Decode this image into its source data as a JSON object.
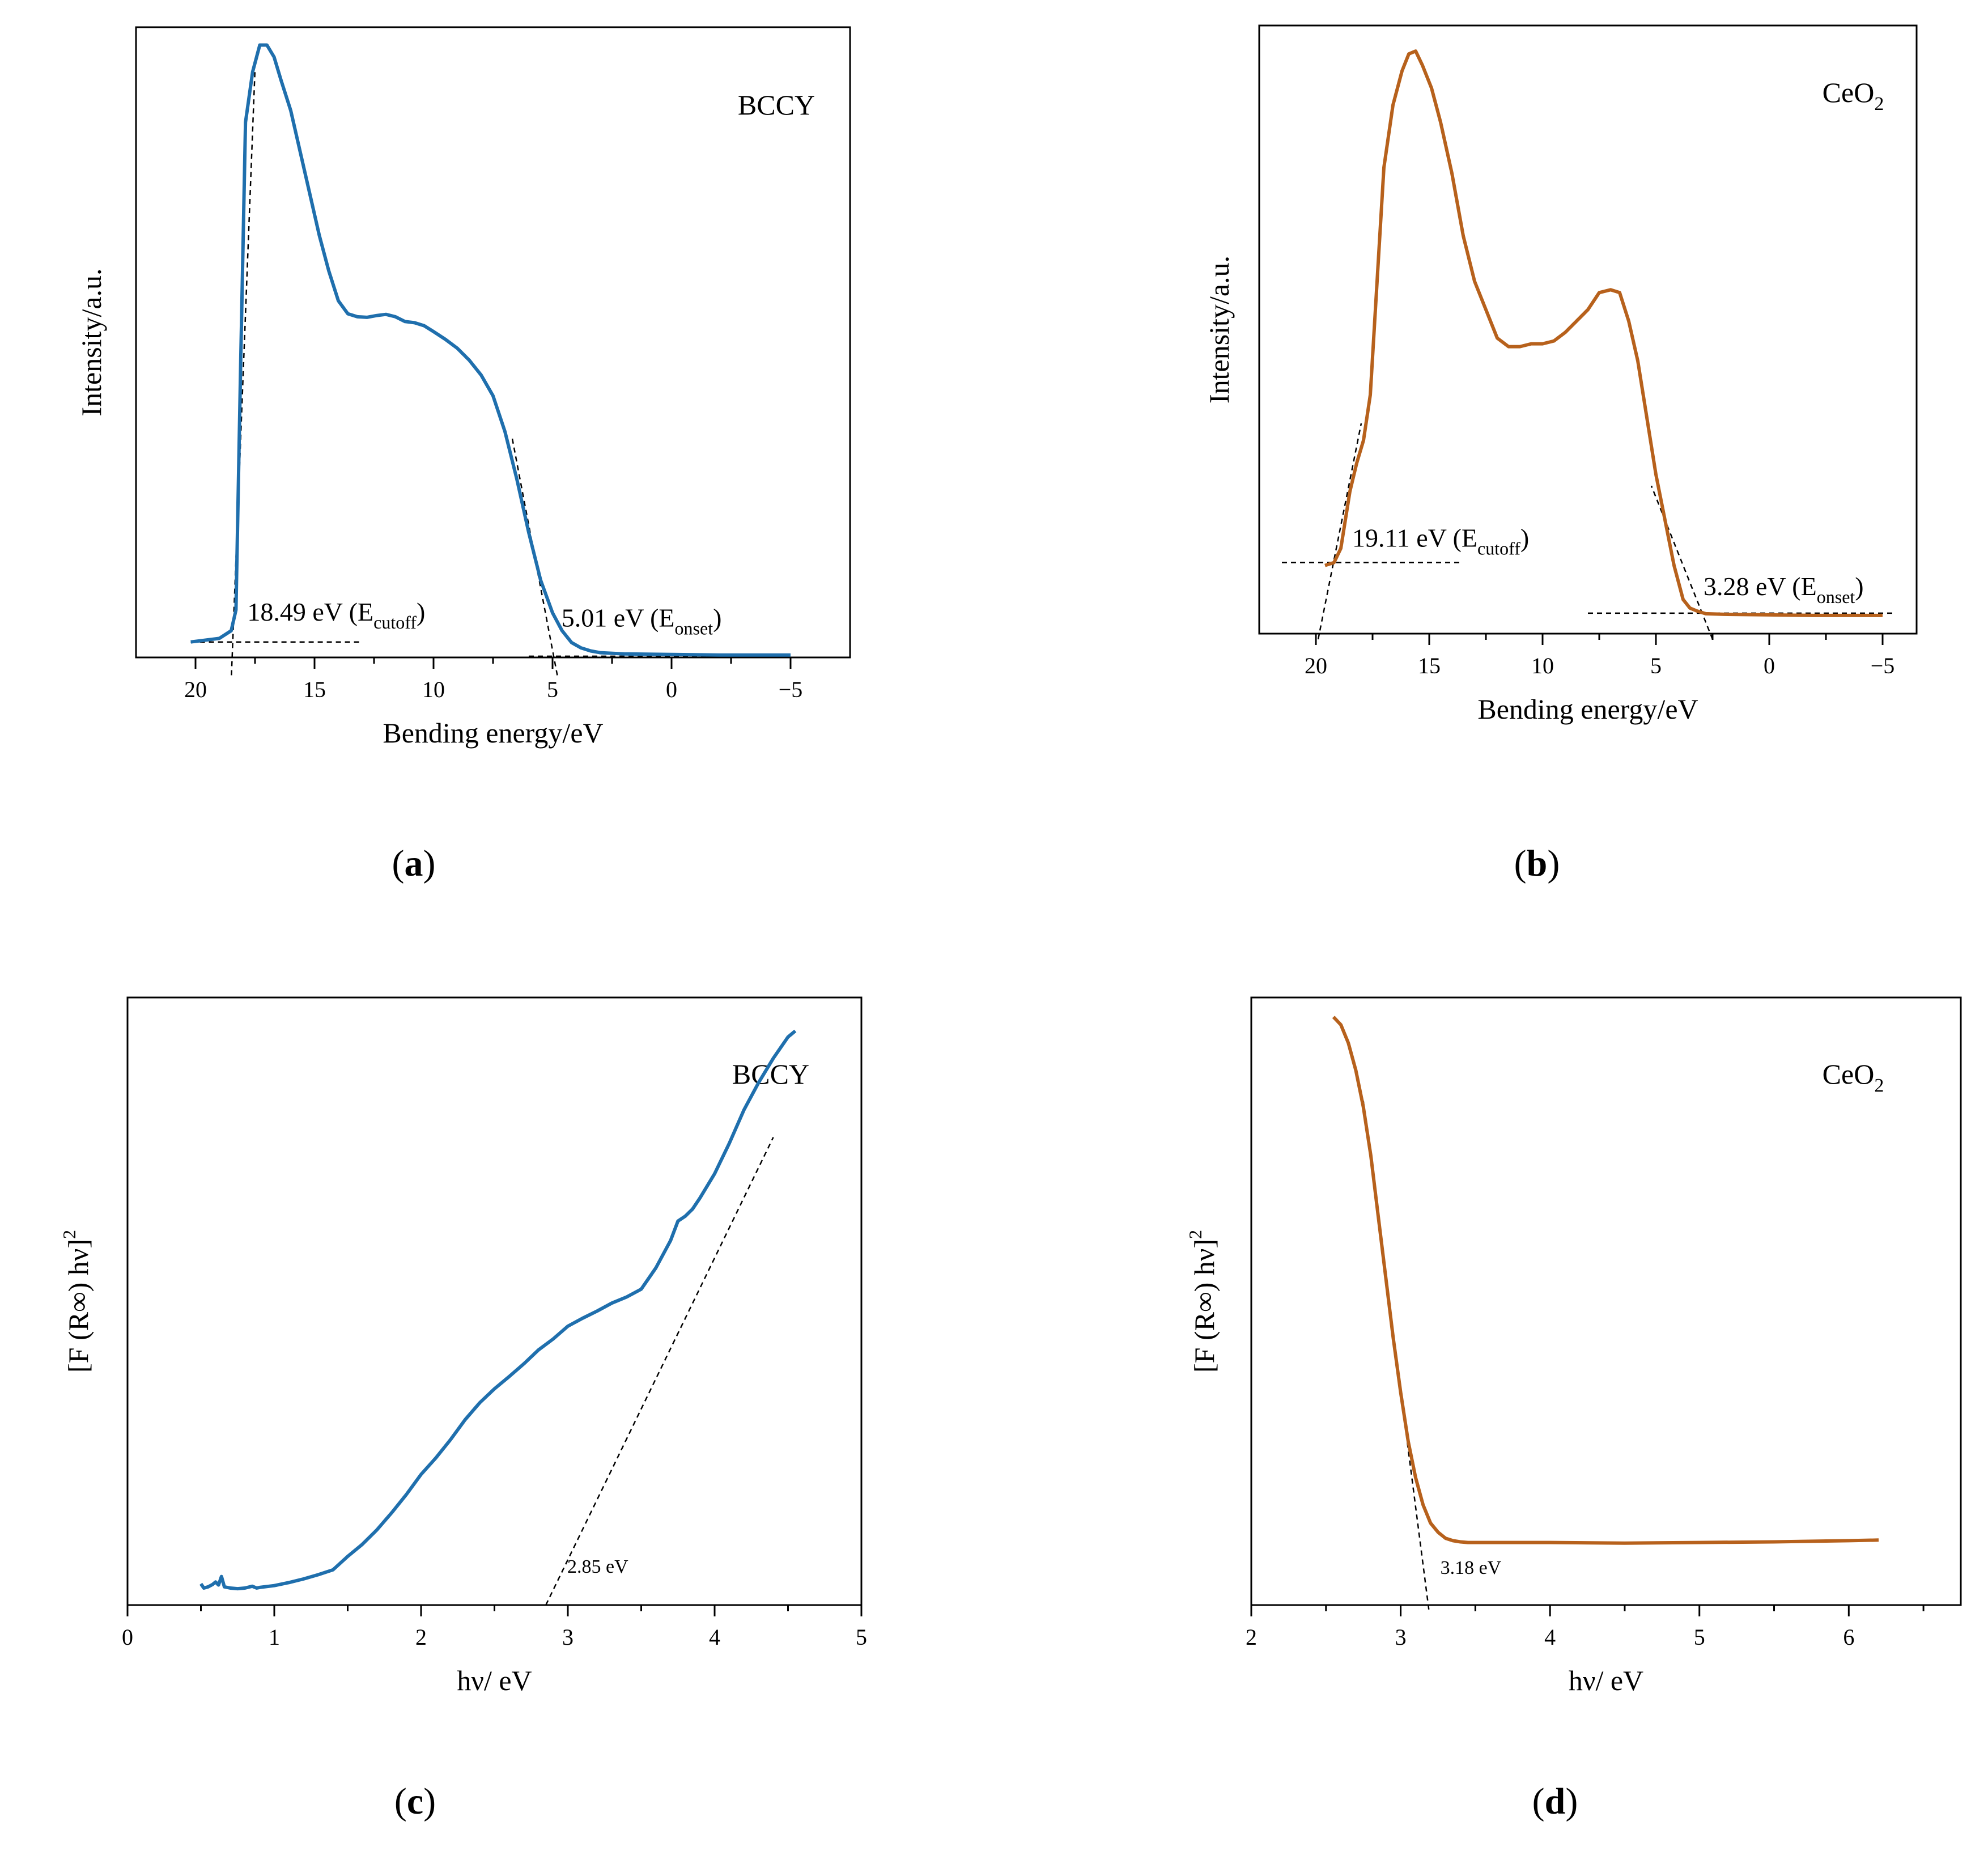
{
  "colors": {
    "blue": "#1f6fad",
    "orange": "#b7611c",
    "axis": "#000000"
  },
  "chart_data": [
    {
      "panel": "a",
      "type": "line",
      "sample": "BCCY",
      "xlabel": "Bending energy/eV",
      "ylabel": "Intensity/a.u.",
      "xlim": [
        22.5,
        -7.5
      ],
      "ylim": [
        0,
        1.06
      ],
      "x_reversed": true,
      "x_ticks": [
        20,
        15,
        10,
        5,
        0,
        -5
      ],
      "x_tick_labels": [
        "20",
        "15",
        "10",
        "5",
        "0",
        "−5"
      ],
      "series": [
        {
          "name": "BCCY",
          "color": "#1f6fad",
          "x": [
            20.2,
            19,
            18.5,
            18.3,
            18.1,
            17.9,
            17.6,
            17.3,
            17.0,
            16.7,
            16.4,
            16.0,
            15.6,
            15.2,
            14.8,
            14.4,
            14.0,
            13.6,
            13.2,
            12.8,
            12.4,
            12.0,
            11.6,
            11.2,
            10.8,
            10.4,
            10.0,
            9.5,
            9.0,
            8.5,
            8.0,
            7.5,
            7.0,
            6.5,
            6.0,
            5.5,
            5.0,
            4.6,
            4.2,
            3.8,
            3.4,
            3.0,
            2.0,
            0,
            -2,
            -4,
            -5
          ],
          "y": [
            0.026,
            0.032,
            0.045,
            0.08,
            0.5,
            0.9,
            0.985,
            1.03,
            1.03,
            1.01,
            0.97,
            0.92,
            0.85,
            0.78,
            0.71,
            0.65,
            0.6,
            0.578,
            0.573,
            0.572,
            0.575,
            0.577,
            0.573,
            0.565,
            0.563,
            0.558,
            0.548,
            0.535,
            0.52,
            0.5,
            0.475,
            0.44,
            0.38,
            0.3,
            0.21,
            0.13,
            0.075,
            0.045,
            0.025,
            0.016,
            0.011,
            0.008,
            0.006,
            0.005,
            0.004,
            0.004,
            0.004
          ]
        }
      ],
      "fit_lines": [
        {
          "points": [
            [
              20.2,
              0.026
            ],
            [
              13.0,
              0.026
            ]
          ]
        },
        {
          "points": [
            [
              18.49,
              -0.03
            ],
            [
              17.5,
              0.99
            ]
          ]
        },
        {
          "points": [
            [
              6.0,
              0.002
            ],
            [
              -4.9,
              0.002
            ]
          ]
        },
        {
          "points": [
            [
              4.8,
              -0.03
            ],
            [
              6.7,
              0.37
            ]
          ]
        }
      ],
      "annotations": [
        {
          "id": "cutoff",
          "value": "18.49 eV",
          "sub": "cutoff",
          "x": 18.3,
          "y": 0.045
        },
        {
          "id": "onset",
          "value": "5.01 eV",
          "sub": "onset",
          "x": 5.1,
          "y": 0.035
        }
      ]
    },
    {
      "panel": "b",
      "type": "line",
      "sample": "CeO2",
      "xlabel": "Bending energy/eV",
      "ylabel": "Intensity/a.u.",
      "xlim": [
        22.5,
        -6.5
      ],
      "ylim": [
        0,
        1.07
      ],
      "x_reversed": true,
      "x_ticks": [
        20,
        15,
        10,
        5,
        0,
        -5
      ],
      "x_tick_labels": [
        "20",
        "15",
        "10",
        "5",
        "0",
        "−5"
      ],
      "series": [
        {
          "name": "CeO2",
          "color": "#b7611c",
          "x": [
            19.6,
            19.2,
            18.9,
            18.7,
            18.5,
            18.2,
            17.9,
            17.6,
            17.3,
            17.0,
            16.6,
            16.2,
            15.9,
            15.6,
            15.3,
            14.9,
            14.5,
            14.0,
            13.5,
            13.0,
            12.5,
            12.0,
            11.5,
            11.0,
            10.5,
            10.0,
            9.5,
            9.0,
            8.5,
            8.0,
            7.5,
            7.0,
            6.6,
            6.2,
            5.8,
            5.4,
            5.0,
            4.6,
            4.2,
            3.8,
            3.5,
            3.2,
            2.8,
            2.0,
            0,
            -2,
            -4,
            -5
          ],
          "y": [
            0.12,
            0.125,
            0.15,
            0.2,
            0.25,
            0.3,
            0.34,
            0.42,
            0.62,
            0.82,
            0.93,
            0.99,
            1.02,
            1.025,
            1.0,
            0.96,
            0.9,
            0.81,
            0.7,
            0.62,
            0.57,
            0.52,
            0.505,
            0.505,
            0.51,
            0.51,
            0.515,
            0.53,
            0.55,
            0.57,
            0.6,
            0.605,
            0.6,
            0.55,
            0.48,
            0.38,
            0.28,
            0.2,
            0.12,
            0.06,
            0.045,
            0.04,
            0.035,
            0.034,
            0.033,
            0.032,
            0.032,
            0.032
          ]
        }
      ],
      "fit_lines": [
        {
          "points": [
            [
              21.5,
              0.125
            ],
            [
              13.5,
              0.125
            ]
          ]
        },
        {
          "points": [
            [
              19.9,
              -0.01
            ],
            [
              18.0,
              0.37
            ]
          ]
        },
        {
          "points": [
            [
              8.0,
              0.036
            ],
            [
              -5.5,
              0.036
            ]
          ]
        },
        {
          "points": [
            [
              2.5,
              -0.01
            ],
            [
              5.2,
              0.26
            ]
          ]
        }
      ],
      "annotations": [
        {
          "id": "cutoff",
          "value": "19.11 eV",
          "sub": "cutoff",
          "x": 18.9,
          "y": 0.135
        },
        {
          "id": "onset",
          "value": "3.28 eV",
          "sub": "onset",
          "x": 3.4,
          "y": 0.05
        }
      ]
    },
    {
      "panel": "c",
      "type": "line",
      "sample": "BCCY",
      "xlabel": "hν/ eV",
      "ylabel": "[F (R∞) hν]",
      "ylabel_sup": "2",
      "xlim": [
        0,
        5
      ],
      "ylim": [
        0,
        1.0
      ],
      "x_ticks": [
        0,
        1,
        2,
        3,
        4,
        5
      ],
      "x_tick_labels": [
        "0",
        "1",
        "2",
        "3",
        "4",
        "5"
      ],
      "series": [
        {
          "name": "BCCY",
          "color": "#1f6fad",
          "x": [
            0.5,
            0.52,
            0.55,
            0.58,
            0.6,
            0.62,
            0.64,
            0.66,
            0.7,
            0.75,
            0.8,
            0.85,
            0.88,
            0.9,
            1.0,
            1.1,
            1.2,
            1.3,
            1.4,
            1.5,
            1.6,
            1.7,
            1.8,
            1.9,
            2.0,
            2.1,
            2.2,
            2.3,
            2.4,
            2.5,
            2.6,
            2.7,
            2.8,
            2.9,
            3.0,
            3.1,
            3.2,
            3.3,
            3.4,
            3.5,
            3.6,
            3.7,
            3.75,
            3.8,
            3.85,
            3.9,
            4.0,
            4.1,
            4.2,
            4.3,
            4.4,
            4.5,
            4.55
          ],
          "y": [
            0.035,
            0.028,
            0.03,
            0.034,
            0.038,
            0.033,
            0.047,
            0.03,
            0.028,
            0.027,
            0.028,
            0.031,
            0.028,
            0.029,
            0.032,
            0.037,
            0.043,
            0.05,
            0.058,
            0.08,
            0.1,
            0.124,
            0.152,
            0.182,
            0.215,
            0.242,
            0.272,
            0.305,
            0.333,
            0.356,
            0.376,
            0.397,
            0.42,
            0.438,
            0.459,
            0.472,
            0.484,
            0.497,
            0.507,
            0.52,
            0.555,
            0.6,
            0.632,
            0.64,
            0.652,
            0.67,
            0.71,
            0.76,
            0.815,
            0.86,
            0.9,
            0.935,
            0.945
          ]
        }
      ],
      "fit_lines": [
        {
          "points": [
            [
              2.85,
              0.0
            ],
            [
              4.4,
              0.77
            ]
          ]
        }
      ],
      "annotations": [
        {
          "id": "gap",
          "value": "2.85 eV",
          "x": 2.95,
          "y": 0.042
        }
      ]
    },
    {
      "panel": "d",
      "type": "line",
      "sample": "CeO2",
      "xlabel": "hν/ eV",
      "ylabel": "[F (R∞) hν]",
      "ylabel_sup": "2",
      "xlim": [
        2,
        6.75
      ],
      "ylim": [
        0,
        1.0
      ],
      "x_ticks": [
        2,
        3,
        4,
        5,
        6
      ],
      "x_tick_labels": [
        "2",
        "3",
        "4",
        "5",
        "6"
      ],
      "series": [
        {
          "name": "CeO2",
          "color": "#b7611c",
          "x": [
            2.55,
            2.6,
            2.65,
            2.7,
            2.75,
            2.8,
            2.85,
            2.9,
            2.95,
            3.0,
            3.05,
            3.1,
            3.15,
            3.2,
            3.25,
            3.3,
            3.35,
            3.4,
            3.45,
            3.5,
            3.6,
            3.8,
            4.0,
            4.5,
            5.0,
            5.5,
            6.0,
            6.2
          ],
          "y": [
            0.968,
            0.955,
            0.925,
            0.88,
            0.82,
            0.74,
            0.64,
            0.54,
            0.44,
            0.35,
            0.27,
            0.21,
            0.165,
            0.135,
            0.12,
            0.11,
            0.106,
            0.104,
            0.103,
            0.103,
            0.103,
            0.103,
            0.103,
            0.102,
            0.103,
            0.104,
            0.106,
            0.107
          ]
        }
      ],
      "fit_lines": [
        {
          "points": [
            [
              2.75,
              0.83
            ],
            [
              3.19,
              -0.01
            ]
          ]
        }
      ],
      "annotations": [
        {
          "id": "gap",
          "value": "3.18 eV",
          "x": 3.22,
          "y": 0.04
        }
      ]
    }
  ],
  "panel_labels": [
    "a",
    "b",
    "c",
    "d"
  ],
  "annotation_subscripts": {
    "cutoff": "cutoff",
    "onset": "onset"
  },
  "sample_subscript": "2"
}
